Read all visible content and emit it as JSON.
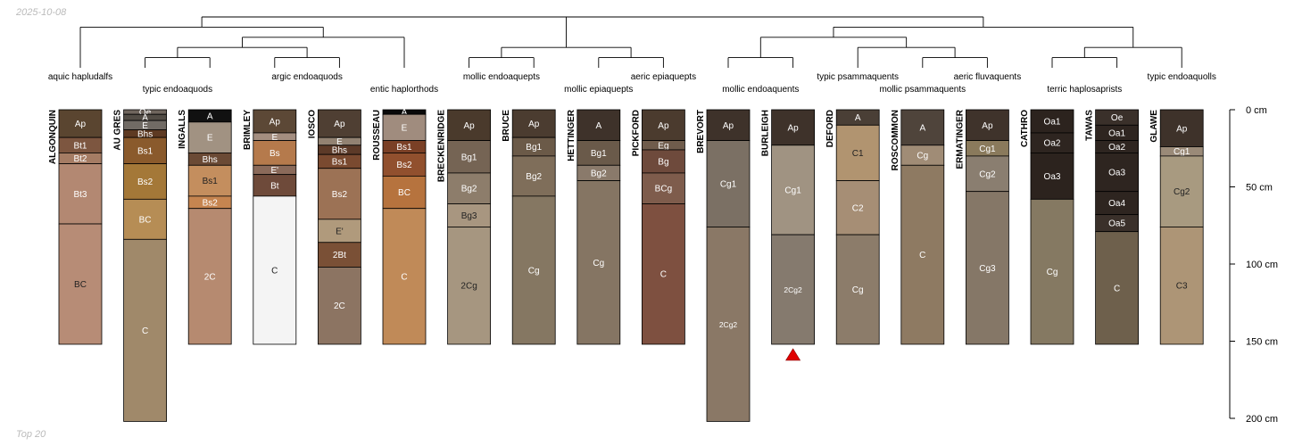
{
  "header": {
    "date": "2025-10-08"
  },
  "footer": {
    "label": "Top 20"
  },
  "depth_axis": {
    "unit": "cm",
    "max": 200,
    "ticks": [
      {
        "value": 0,
        "label": "0 cm"
      },
      {
        "value": 50,
        "label": "50 cm"
      },
      {
        "value": 100,
        "label": "100 cm"
      },
      {
        "value": 150,
        "label": "150 cm"
      },
      {
        "value": 200,
        "label": "200 cm"
      }
    ]
  },
  "taxa": [
    {
      "label": "aquic hapludalfs"
    },
    {
      "label": "typic endoaquods"
    },
    {
      "label": "argic endoaquods"
    },
    {
      "label": "entic haplorthods"
    },
    {
      "label": "mollic endoaquepts"
    },
    {
      "label": "mollic epiaquepts"
    },
    {
      "label": "aeric epiaquepts"
    },
    {
      "label": "mollic endoaquents"
    },
    {
      "label": "typic psammaquents"
    },
    {
      "label": "mollic psammaquents"
    },
    {
      "label": "aeric fluvaquents"
    },
    {
      "label": "terric haplosaprists"
    },
    {
      "label": "typic endoaquolls"
    }
  ],
  "profiles": [
    {
      "name": "ALGONQUIN",
      "horizons": [
        {
          "name": "Ap",
          "top": 0,
          "bottom": 18,
          "color": "#5a4530"
        },
        {
          "name": "Bt1",
          "top": 18,
          "bottom": 28,
          "color": "#7d5640"
        },
        {
          "name": "Bt2",
          "top": 28,
          "bottom": 35,
          "color": "#a57c64"
        },
        {
          "name": "Bt3",
          "top": 35,
          "bottom": 74,
          "color": "#b38872"
        },
        {
          "name": "BC",
          "top": 74,
          "bottom": 152,
          "color": "#b78c76"
        }
      ]
    },
    {
      "name": "AU GRES",
      "horizons": [
        {
          "name": "Oe",
          "top": 0,
          "bottom": 3,
          "color": "#6f655d"
        },
        {
          "name": "A",
          "top": 3,
          "bottom": 7,
          "color": "#524c45"
        },
        {
          "name": "E",
          "top": 7,
          "bottom": 13,
          "color": "#716b65"
        },
        {
          "name": "Bhs",
          "top": 13,
          "bottom": 18,
          "color": "#5e3a22"
        },
        {
          "name": "Bs1",
          "top": 18,
          "bottom": 35,
          "color": "#8a5a2c"
        },
        {
          "name": "Bs2",
          "top": 35,
          "bottom": 58,
          "color": "#a47838"
        },
        {
          "name": "BC",
          "top": 58,
          "bottom": 84,
          "color": "#b68d55"
        },
        {
          "name": "C",
          "top": 84,
          "bottom": 202,
          "color": "#a0896a"
        }
      ]
    },
    {
      "name": "INGALLS",
      "horizons": [
        {
          "name": "A",
          "top": 0,
          "bottom": 8,
          "color": "#111111"
        },
        {
          "name": "E",
          "top": 8,
          "bottom": 28,
          "color": "#a19282"
        },
        {
          "name": "Bhs",
          "top": 28,
          "bottom": 36,
          "color": "#6b4a35"
        },
        {
          "name": "Bs1",
          "top": 36,
          "bottom": 56,
          "color": "#c48e5e"
        },
        {
          "name": "Bs2",
          "top": 56,
          "bottom": 64,
          "color": "#c68550"
        },
        {
          "name": "2C",
          "top": 64,
          "bottom": 152,
          "color": "#b68a70"
        }
      ]
    },
    {
      "name": "BRIMLEY",
      "horizons": [
        {
          "name": "Ap",
          "top": 0,
          "bottom": 15,
          "color": "#5c4836"
        },
        {
          "name": "E",
          "top": 15,
          "bottom": 20,
          "color": "#a48e80"
        },
        {
          "name": "Bs",
          "top": 20,
          "bottom": 36,
          "color": "#b57a4c"
        },
        {
          "name": "E'",
          "top": 36,
          "bottom": 42,
          "color": "#8a6a5a"
        },
        {
          "name": "Bt",
          "top": 42,
          "bottom": 56,
          "color": "#6e4a3a"
        },
        {
          "name": "C",
          "top": 56,
          "bottom": 152,
          "color": "#f4f4f4"
        }
      ]
    },
    {
      "name": "IOSCO",
      "horizons": [
        {
          "name": "Ap",
          "top": 0,
          "bottom": 18,
          "color": "#4f3f33"
        },
        {
          "name": "E",
          "top": 18,
          "bottom": 23,
          "color": "#928272"
        },
        {
          "name": "Bhs",
          "top": 23,
          "bottom": 29,
          "color": "#5c3a28"
        },
        {
          "name": "Bs1",
          "top": 29,
          "bottom": 38,
          "color": "#7a4a30"
        },
        {
          "name": "Bs2",
          "top": 38,
          "bottom": 71,
          "color": "#9c7255"
        },
        {
          "name": "E'",
          "top": 71,
          "bottom": 86,
          "color": "#b09a7c"
        },
        {
          "name": "2Bt",
          "top": 86,
          "bottom": 102,
          "color": "#7a5036"
        },
        {
          "name": "2C",
          "top": 102,
          "bottom": 152,
          "color": "#8c7462"
        }
      ]
    },
    {
      "name": "ROUSSEAU",
      "horizons": [
        {
          "name": "A",
          "top": 0,
          "bottom": 3,
          "color": "#0a0a0a"
        },
        {
          "name": "E",
          "top": 3,
          "bottom": 20,
          "color": "#a08c7e"
        },
        {
          "name": "Bs1",
          "top": 20,
          "bottom": 28,
          "color": "#7a4026"
        },
        {
          "name": "Bs2",
          "top": 28,
          "bottom": 43,
          "color": "#91502e"
        },
        {
          "name": "BC",
          "top": 43,
          "bottom": 64,
          "color": "#b6733e"
        },
        {
          "name": "C",
          "top": 64,
          "bottom": 152,
          "color": "#c08a58"
        }
      ]
    },
    {
      "name": "BRECKENRIDGE",
      "horizons": [
        {
          "name": "Ap",
          "top": 0,
          "bottom": 20,
          "color": "#4a3a2c"
        },
        {
          "name": "Bg1",
          "top": 20,
          "bottom": 41,
          "color": "#756454"
        },
        {
          "name": "Bg2",
          "top": 41,
          "bottom": 61,
          "color": "#8d7d6b"
        },
        {
          "name": "Bg3",
          "top": 61,
          "bottom": 76,
          "color": "#a89680"
        },
        {
          "name": "2Cg",
          "top": 76,
          "bottom": 152,
          "color": "#a69680"
        }
      ]
    },
    {
      "name": "BRUCE",
      "horizons": [
        {
          "name": "Ap",
          "top": 0,
          "bottom": 18,
          "color": "#4b3c30"
        },
        {
          "name": "Bg1",
          "top": 18,
          "bottom": 30,
          "color": "#6b5a48"
        },
        {
          "name": "Bg2",
          "top": 30,
          "bottom": 56,
          "color": "#7f6e5a"
        },
        {
          "name": "Cg",
          "top": 56,
          "bottom": 152,
          "color": "#857762"
        }
      ]
    },
    {
      "name": "HETTINGER",
      "horizons": [
        {
          "name": "A",
          "top": 0,
          "bottom": 20,
          "color": "#3e322a"
        },
        {
          "name": "Bg1",
          "top": 20,
          "bottom": 36,
          "color": "#6a5a4a"
        },
        {
          "name": "Bg2",
          "top": 36,
          "bottom": 46,
          "color": "#8a7a6b"
        },
        {
          "name": "Cg",
          "top": 46,
          "bottom": 152,
          "color": "#857563"
        }
      ]
    },
    {
      "name": "PICKFORD",
      "horizons": [
        {
          "name": "Ap",
          "top": 0,
          "bottom": 20,
          "color": "#4b3b2e"
        },
        {
          "name": "Eg",
          "top": 20,
          "bottom": 26,
          "color": "#6f5c4c"
        },
        {
          "name": "Bg",
          "top": 26,
          "bottom": 41,
          "color": "#6e4a3c"
        },
        {
          "name": "BCg",
          "top": 41,
          "bottom": 61,
          "color": "#7e5c4c"
        },
        {
          "name": "C",
          "top": 61,
          "bottom": 152,
          "color": "#7e5040"
        }
      ]
    },
    {
      "name": "BREVORT",
      "horizons": [
        {
          "name": "Ap",
          "top": 0,
          "bottom": 20,
          "color": "#3e322a"
        },
        {
          "name": "Cg1",
          "top": 20,
          "bottom": 76,
          "color": "#7b7064"
        },
        {
          "name": "2Cg2",
          "top": 76,
          "bottom": 202,
          "color": "#8a7866"
        }
      ]
    },
    {
      "name": "BURLEIGH",
      "horizons": [
        {
          "name": "Ap",
          "top": 0,
          "bottom": 23,
          "color": "#3e322a"
        },
        {
          "name": "Cg1",
          "top": 23,
          "bottom": 81,
          "color": "#a09382"
        },
        {
          "name": "2Cg2",
          "top": 81,
          "bottom": 152,
          "color": "#857a6e"
        }
      ]
    },
    {
      "name": "DEFORD",
      "horizons": [
        {
          "name": "A",
          "top": 0,
          "bottom": 10,
          "color": "#4a3f36"
        },
        {
          "name": "C1",
          "top": 10,
          "bottom": 46,
          "color": "#b19470"
        },
        {
          "name": "C2",
          "top": 46,
          "bottom": 81,
          "color": "#a68e75"
        },
        {
          "name": "Cg",
          "top": 81,
          "bottom": 152,
          "color": "#8c7c6a"
        }
      ]
    },
    {
      "name": "ROSCOMMON",
      "horizons": [
        {
          "name": "A",
          "top": 0,
          "bottom": 23,
          "color": "#4f443b"
        },
        {
          "name": "Cg",
          "top": 23,
          "bottom": 36,
          "color": "#a08c76"
        },
        {
          "name": "C",
          "top": 36,
          "bottom": 152,
          "color": "#8e7a62"
        }
      ]
    },
    {
      "name": "ERMATINGER",
      "horizons": [
        {
          "name": "Ap",
          "top": 0,
          "bottom": 20,
          "color": "#3f332b"
        },
        {
          "name": "Cg1",
          "top": 20,
          "bottom": 30,
          "color": "#8a7a5c"
        },
        {
          "name": "Cg2",
          "top": 30,
          "bottom": 53,
          "color": "#8a7e70"
        },
        {
          "name": "Cg3",
          "top": 53,
          "bottom": 152,
          "color": "#857767"
        }
      ]
    },
    {
      "name": "CATHRO",
      "horizons": [
        {
          "name": "Oa1",
          "top": 0,
          "bottom": 15,
          "color": "#2c231e"
        },
        {
          "name": "Oa2",
          "top": 15,
          "bottom": 28,
          "color": "#2e2520"
        },
        {
          "name": "Oa3",
          "top": 28,
          "bottom": 58,
          "color": "#2c231e"
        },
        {
          "name": "Cg",
          "top": 58,
          "bottom": 152,
          "color": "#857962"
        }
      ]
    },
    {
      "name": "TAWAS",
      "horizons": [
        {
          "name": "Oe",
          "top": 0,
          "bottom": 10,
          "color": "#3a302a"
        },
        {
          "name": "Oa1",
          "top": 10,
          "bottom": 20,
          "color": "#2e2520"
        },
        {
          "name": "Oa2",
          "top": 20,
          "bottom": 28,
          "color": "#2e2520"
        },
        {
          "name": "Oa3",
          "top": 28,
          "bottom": 53,
          "color": "#2e2520"
        },
        {
          "name": "Oa4",
          "top": 53,
          "bottom": 68,
          "color": "#2e2520"
        },
        {
          "name": "Oa5",
          "top": 68,
          "bottom": 79,
          "color": "#3a302a"
        },
        {
          "name": "C",
          "top": 79,
          "bottom": 152,
          "color": "#6e604c"
        }
      ]
    },
    {
      "name": "GLAWE",
      "horizons": [
        {
          "name": "Ap",
          "top": 0,
          "bottom": 24,
          "color": "#3e322a"
        },
        {
          "name": "Cg1",
          "top": 24,
          "bottom": 30,
          "color": "#9a8a78"
        },
        {
          "name": "Cg2",
          "top": 30,
          "bottom": 76,
          "color": "#a89a80"
        },
        {
          "name": "C3",
          "top": 76,
          "bottom": 152,
          "color": "#ad9576"
        }
      ]
    }
  ],
  "markers": [
    {
      "profile": "BURLEIGH",
      "symbol": "red-triangle",
      "color": "#e00000"
    }
  ],
  "dendrogram": {
    "tree": [
      [
        {
          "profile": "ALGONQUIN",
          "taxon": "aquic hapludalfs"
        },
        [
          [
            [
              {
                "profile": "AU GRES",
                "taxon": "typic endoaquods"
              },
              {
                "profile": "INGALLS",
                "taxon": "typic endoaquods"
              }
            ],
            [
              {
                "profile": "BRIMLEY",
                "taxon": "argic endoaquods"
              },
              {
                "profile": "IOSCO",
                "taxon": "argic endoaquods"
              }
            ]
          ],
          {
            "profile": "ROUSSEAU",
            "taxon": "entic haplorthods"
          }
        ]
      ],
      [
        [
          {
            "profile": "BRECKENRIDGE",
            "taxon": "mollic endoaquepts"
          },
          {
            "profile": "BRUCE",
            "taxon": "mollic endoaquepts"
          }
        ],
        [
          {
            "profile": "HETTINGER",
            "taxon": "mollic epiaquepts"
          },
          {
            "profile": "PICKFORD",
            "taxon": "aeric epiaquepts"
          }
        ]
      ],
      [
        [
          [
            {
              "profile": "BREVORT",
              "taxon": "mollic endoaquents"
            },
            {
              "profile": "BURLEIGH",
              "taxon": "mollic endoaquents"
            }
          ],
          [
            {
              "profile": "DEFORD",
              "taxon": "typic psammaquents"
            },
            [
              {
                "profile": "ROSCOMMON",
                "taxon": "mollic psammaquents"
              },
              {
                "profile": "ERMATINGER",
                "taxon": "aeric fluvaquents"
              }
            ]
          ]
        ],
        [
          [
            {
              "profile": "CATHRO",
              "taxon": "terric haplosaprists"
            },
            {
              "profile": "TAWAS",
              "taxon": "terric haplosaprists"
            }
          ],
          {
            "profile": "GLAWE",
            "taxon": "typic endoaquolls"
          }
        ]
      ]
    ]
  }
}
